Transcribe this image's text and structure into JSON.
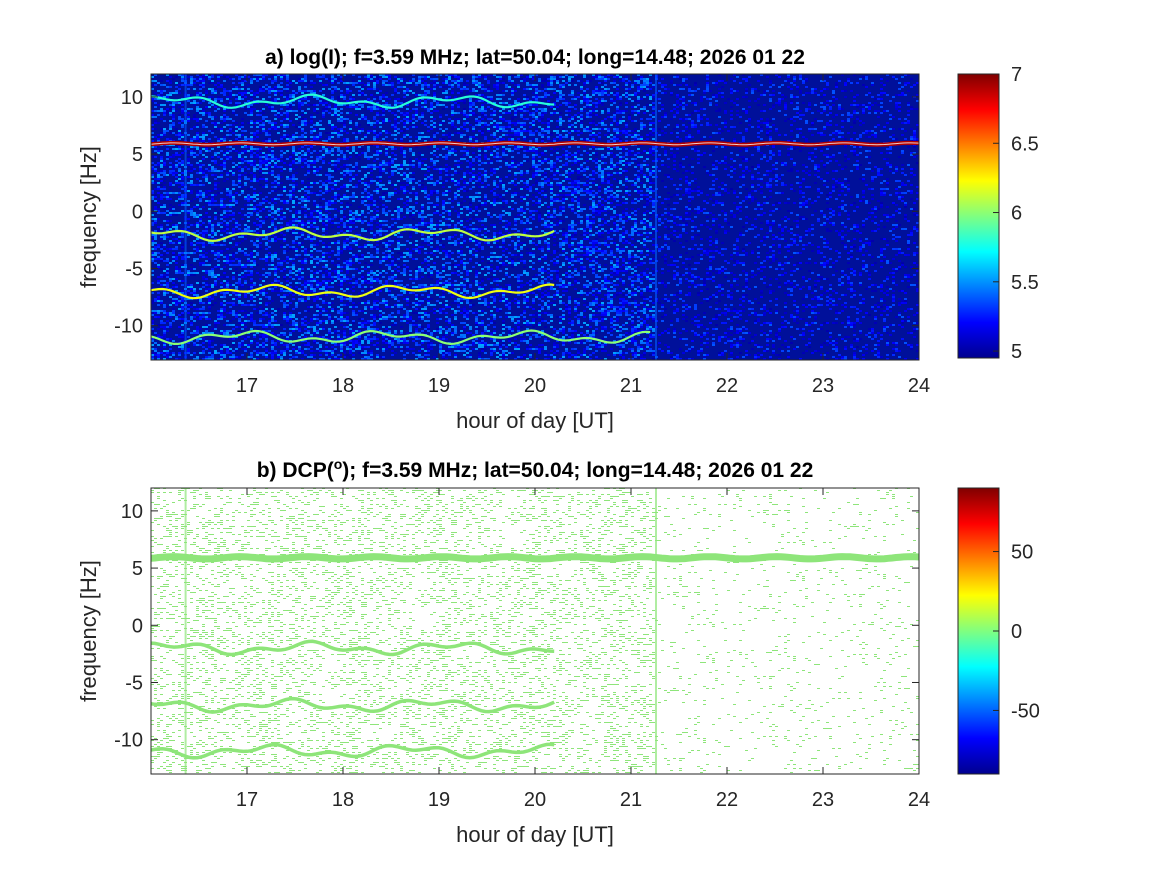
{
  "chart_data": [
    {
      "type": "heatmap",
      "title": "a) log(I); f=3.59 MHz;  lat=50.04; long=14.48; 2026 01 22",
      "xlabel": "hour of day [UT]",
      "ylabel": "frequency [Hz]",
      "xlim": [
        16,
        24
      ],
      "ylim": [
        -13,
        12
      ],
      "xticks": [
        17,
        18,
        19,
        20,
        21,
        22,
        23,
        24
      ],
      "yticks": [
        10,
        5,
        0,
        -5,
        -10
      ],
      "colorbar": {
        "colormap": "jet",
        "range": [
          4.95,
          7.0
        ],
        "ticks": [
          7,
          6.5,
          6,
          5.5,
          5
        ]
      },
      "background_level": 5.0,
      "noise_change_hour": 21.25,
      "traces": [
        {
          "name": "",
          "frequency": 5.9,
          "from": 16.0,
          "to": 24.0,
          "level": 6.9
        },
        {
          "name": "",
          "frequency": 9.6,
          "from": 16.0,
          "to": 20.2,
          "level": 5.8
        },
        {
          "name": "",
          "frequency": -2.0,
          "from": 16.0,
          "to": 20.2,
          "level": 6.1
        },
        {
          "name": "",
          "frequency": -7.0,
          "from": 16.0,
          "to": 20.2,
          "level": 6.2
        },
        {
          "name": "",
          "frequency": -11.0,
          "from": 16.0,
          "to": 21.2,
          "level": 6.0
        }
      ]
    },
    {
      "type": "heatmap",
      "title": "b) DCP(°); f=3.59 MHz;  lat=50.04; long=14.48; 2026 01 22",
      "title_main": "b) DCP(",
      "title_sup": "o",
      "title_rest": "); f=3.59 MHz;  lat=50.04; long=14.48; 2026 01 22",
      "xlabel": "hour of day [UT]",
      "ylabel": "frequency [Hz]",
      "xlim": [
        16,
        24
      ],
      "ylim": [
        -13,
        12
      ],
      "xticks": [
        17,
        18,
        19,
        20,
        21,
        22,
        23,
        24
      ],
      "yticks": [
        10,
        5,
        0,
        -5,
        -10
      ],
      "colorbar": {
        "colormap": "jet",
        "range": [
          -90,
          90
        ],
        "ticks": [
          50,
          0,
          -50
        ]
      },
      "value_color": "#8ee57a",
      "traces": [
        {
          "name": "",
          "frequency": 5.9,
          "from": 16.0,
          "to": 24.0
        },
        {
          "name": "",
          "frequency": -2.0,
          "from": 16.0,
          "to": 20.2
        },
        {
          "name": "",
          "frequency": -7.0,
          "from": 16.0,
          "to": 20.2
        },
        {
          "name": "",
          "frequency": -11.0,
          "from": 16.0,
          "to": 20.2
        }
      ]
    }
  ]
}
